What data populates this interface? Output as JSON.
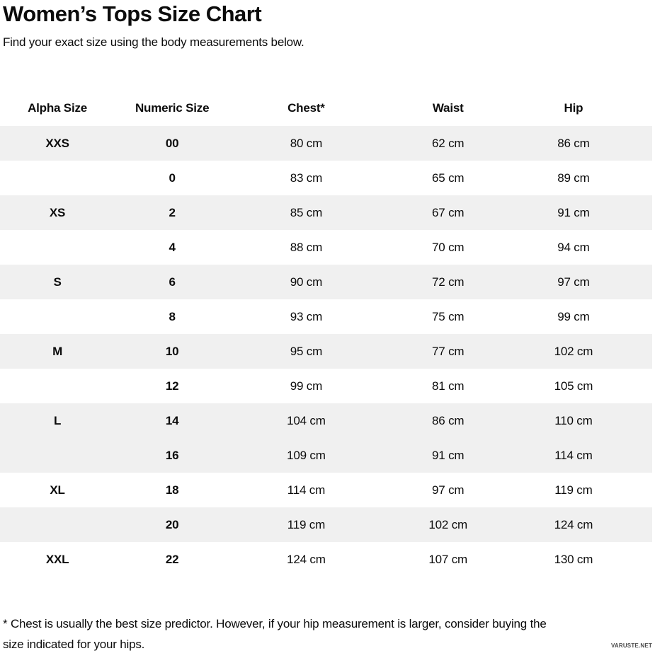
{
  "page": {
    "title": "Women’s Tops Size Chart",
    "subtitle": "Find your exact size using the body measurements below.",
    "footnote_lines": [
      "* Chest is usually the best size predictor. However, if your hip measurement is larger, consider buying the",
      "size indicated for your hips."
    ],
    "watermark": "VARUSTE.NET"
  },
  "colors": {
    "row_shade": "#f0f0f0",
    "text": "#0c0c0c"
  },
  "table": {
    "columns": [
      "Alpha Size",
      "Numeric Size",
      "Chest*",
      "Waist",
      "Hip"
    ],
    "rows": [
      {
        "alpha": "XXS",
        "numeric": "00",
        "chest": "80 cm",
        "waist": "62 cm",
        "hip": "86 cm",
        "shaded": true
      },
      {
        "alpha": "",
        "numeric": "0",
        "chest": "83 cm",
        "waist": "65 cm",
        "hip": "89 cm",
        "shaded": false
      },
      {
        "alpha": "XS",
        "numeric": "2",
        "chest": "85 cm",
        "waist": "67 cm",
        "hip": "91 cm",
        "shaded": true
      },
      {
        "alpha": "",
        "numeric": "4",
        "chest": "88 cm",
        "waist": "70 cm",
        "hip": "94 cm",
        "shaded": false
      },
      {
        "alpha": "S",
        "numeric": "6",
        "chest": "90 cm",
        "waist": "72 cm",
        "hip": "97 cm",
        "shaded": true
      },
      {
        "alpha": "",
        "numeric": "8",
        "chest": "93 cm",
        "waist": "75 cm",
        "hip": "99 cm",
        "shaded": false
      },
      {
        "alpha": "M",
        "numeric": "10",
        "chest": "95 cm",
        "waist": "77 cm",
        "hip": "102 cm",
        "shaded": true
      },
      {
        "alpha": "",
        "numeric": "12",
        "chest": "99 cm",
        "waist": "81 cm",
        "hip": "105 cm",
        "shaded": false
      },
      {
        "alpha": "L",
        "numeric": "14",
        "chest": "104 cm",
        "waist": "86 cm",
        "hip": "110 cm",
        "shaded": true
      },
      {
        "alpha": "",
        "numeric": "16",
        "chest": "109 cm",
        "waist": "91 cm",
        "hip": "114 cm",
        "shaded": true
      },
      {
        "alpha": "XL",
        "numeric": "18",
        "chest": "114 cm",
        "waist": "97 cm",
        "hip": "119 cm",
        "shaded": false
      },
      {
        "alpha": "",
        "numeric": "20",
        "chest": "119 cm",
        "waist": "102 cm",
        "hip": "124 cm",
        "shaded": true
      },
      {
        "alpha": "XXL",
        "numeric": "22",
        "chest": "124 cm",
        "waist": "107 cm",
        "hip": "130 cm",
        "shaded": false
      }
    ]
  }
}
